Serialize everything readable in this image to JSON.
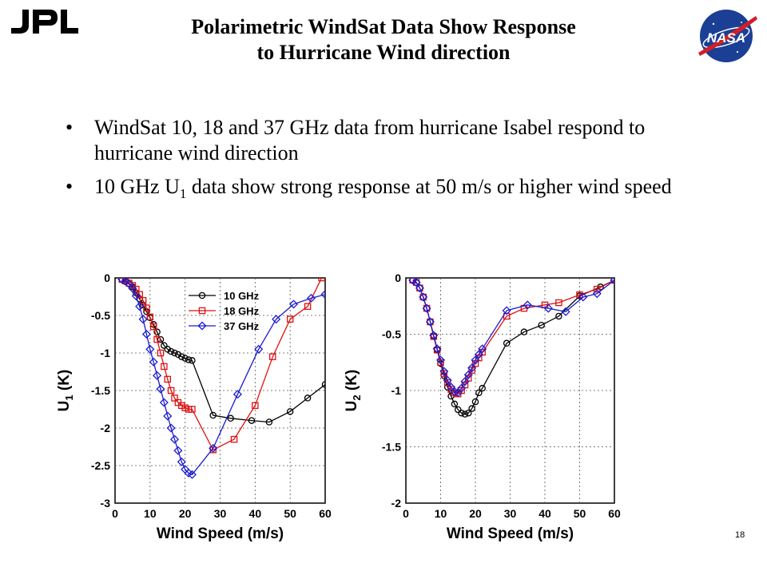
{
  "header": {
    "left_logo": "JPL",
    "right_logo": "NASA",
    "title_line1": "Polarimetric WindSat Data Show Response",
    "title_line2": "to Hurricane Wind direction"
  },
  "bullets": [
    {
      "text": "WindSat 10, 18 and 37 GHz data from hurricane Isabel respond to hurricane wind direction"
    },
    {
      "before": "10 GHz U",
      "sub": "1",
      "after": " data show strong response at 50 m/s or higher wind speed"
    }
  ],
  "page_number": "18",
  "colors": {
    "s10": "#000000",
    "s18": "#dd1111",
    "s37": "#1a1ad0",
    "grid": "#555555"
  },
  "icons": {
    "jpl": "jpl-logo-icon",
    "nasa": "nasa-meatball-icon"
  },
  "chart_data": [
    {
      "type": "line",
      "ylabel_base": "U",
      "ylabel_sub": "1",
      "ylabel_suffix": " (K)",
      "xlabel": "Wind Speed (m/s)",
      "xlim": [
        0,
        60
      ],
      "ylim": [
        -3,
        0
      ],
      "xticks": [
        0,
        10,
        20,
        30,
        40,
        50,
        60
      ],
      "yticks": [
        0,
        -0.5,
        -1,
        -1.5,
        -2,
        -2.5,
        -3
      ],
      "ytick_labels": [
        "0",
        "-0.5",
        "-1",
        "-1.5",
        "-2",
        "-2.5",
        "-3"
      ],
      "grid": true,
      "legend": "top-center",
      "series": [
        {
          "name": "10 GHz",
          "marker": "circle",
          "color": "#000000",
          "x": [
            2,
            3,
            4,
            5,
            6,
            7,
            8,
            9,
            10,
            11,
            12,
            13,
            14,
            15,
            16,
            17,
            18,
            19,
            20,
            21,
            22,
            28,
            33,
            39,
            44,
            50,
            55,
            60
          ],
          "y": [
            -0.02,
            -0.05,
            -0.08,
            -0.12,
            -0.2,
            -0.28,
            -0.36,
            -0.45,
            -0.53,
            -0.62,
            -0.72,
            -0.82,
            -0.9,
            -0.95,
            -0.98,
            -1.0,
            -1.02,
            -1.05,
            -1.07,
            -1.09,
            -1.1,
            -1.83,
            -1.87,
            -1.9,
            -1.92,
            -1.78,
            -1.6,
            -1.42
          ]
        },
        {
          "name": "18 GHz",
          "marker": "square",
          "color": "#dd1111",
          "x": [
            2,
            3,
            4,
            5,
            6,
            7,
            8,
            9,
            10,
            11,
            12,
            13,
            14,
            15,
            16,
            17,
            18,
            19,
            20,
            21,
            22,
            28,
            34,
            40,
            45,
            50,
            55,
            59
          ],
          "y": [
            -0.02,
            -0.04,
            -0.07,
            -0.1,
            -0.15,
            -0.22,
            -0.3,
            -0.4,
            -0.52,
            -0.65,
            -0.82,
            -1.0,
            -1.18,
            -1.35,
            -1.5,
            -1.6,
            -1.66,
            -1.7,
            -1.73,
            -1.75,
            -1.75,
            -2.29,
            -2.15,
            -1.7,
            -1.05,
            -0.55,
            -0.38,
            0.0
          ]
        },
        {
          "name": "37 GHz",
          "marker": "diamond",
          "color": "#1a1ad0",
          "x": [
            2,
            3,
            4,
            5,
            6,
            7,
            8,
            9,
            10,
            11,
            12,
            13,
            14,
            15,
            16,
            17,
            18,
            19,
            20,
            21,
            22,
            28,
            35,
            41,
            46,
            51,
            56,
            60
          ],
          "y": [
            -0.02,
            -0.04,
            -0.08,
            -0.14,
            -0.24,
            -0.38,
            -0.55,
            -0.75,
            -0.95,
            -1.12,
            -1.3,
            -1.48,
            -1.66,
            -1.84,
            -2.0,
            -2.15,
            -2.3,
            -2.45,
            -2.55,
            -2.6,
            -2.62,
            -2.27,
            -1.55,
            -0.95,
            -0.55,
            -0.35,
            -0.27,
            -0.22
          ]
        }
      ]
    },
    {
      "type": "line",
      "ylabel_base": "U",
      "ylabel_sub": "2",
      "ylabel_suffix": " (K)",
      "xlabel": "Wind Speed (m/s)",
      "xlim": [
        0,
        60
      ],
      "ylim": [
        -2,
        0
      ],
      "xticks": [
        0,
        10,
        20,
        30,
        40,
        50,
        60
      ],
      "yticks": [
        0,
        -0.5,
        -1,
        -1.5,
        -2
      ],
      "ytick_labels": [
        "0",
        "-0.5",
        "-1",
        "-1.5",
        "-2"
      ],
      "grid": true,
      "legend": "none",
      "series": [
        {
          "name": "10 GHz",
          "marker": "circle",
          "color": "#000000",
          "x": [
            2,
            3,
            4,
            5,
            6,
            7,
            8,
            9,
            10,
            11,
            12,
            13,
            14,
            15,
            16,
            17,
            18,
            19,
            20,
            21,
            22,
            29,
            34,
            39,
            44,
            50,
            56,
            60
          ],
          "y": [
            -0.02,
            -0.04,
            -0.09,
            -0.17,
            -0.27,
            -0.39,
            -0.52,
            -0.64,
            -0.76,
            -0.87,
            -0.97,
            -1.05,
            -1.12,
            -1.17,
            -1.2,
            -1.21,
            -1.2,
            -1.16,
            -1.1,
            -1.02,
            -0.98,
            -0.58,
            -0.48,
            -0.42,
            -0.34,
            -0.16,
            -0.08,
            -0.02
          ]
        },
        {
          "name": "18 GHz",
          "marker": "square",
          "color": "#dd1111",
          "x": [
            2,
            3,
            4,
            5,
            6,
            7,
            8,
            9,
            10,
            11,
            12,
            13,
            14,
            15,
            16,
            17,
            18,
            19,
            20,
            21,
            22,
            29,
            34,
            40,
            44,
            50,
            55,
            60
          ],
          "y": [
            -0.02,
            -0.04,
            -0.09,
            -0.17,
            -0.27,
            -0.39,
            -0.52,
            -0.64,
            -0.75,
            -0.85,
            -0.93,
            -0.99,
            -1.02,
            -1.03,
            -1.0,
            -0.95,
            -0.89,
            -0.82,
            -0.76,
            -0.71,
            -0.66,
            -0.34,
            -0.27,
            -0.24,
            -0.22,
            -0.15,
            -0.1,
            -0.02
          ]
        },
        {
          "name": "37 GHz",
          "marker": "diamond",
          "color": "#1a1ad0",
          "x": [
            2,
            3,
            4,
            5,
            6,
            7,
            8,
            9,
            10,
            11,
            12,
            13,
            14,
            15,
            16,
            17,
            18,
            19,
            20,
            21,
            22,
            29,
            35,
            41,
            46,
            51,
            55,
            60
          ],
          "y": [
            -0.02,
            -0.04,
            -0.09,
            -0.17,
            -0.27,
            -0.39,
            -0.51,
            -0.63,
            -0.73,
            -0.83,
            -0.91,
            -0.97,
            -1.01,
            -1.02,
            -0.98,
            -0.92,
            -0.86,
            -0.8,
            -0.73,
            -0.68,
            -0.63,
            -0.29,
            -0.24,
            -0.27,
            -0.3,
            -0.17,
            -0.14,
            -0.02
          ]
        }
      ]
    }
  ]
}
